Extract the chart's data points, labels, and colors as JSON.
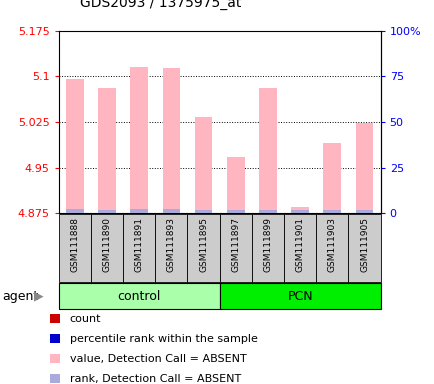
{
  "title": "GDS2093 / 1375975_at",
  "samples": [
    "GSM111888",
    "GSM111890",
    "GSM111891",
    "GSM111893",
    "GSM111895",
    "GSM111897",
    "GSM111899",
    "GSM111901",
    "GSM111903",
    "GSM111905"
  ],
  "groups": [
    "control",
    "control",
    "control",
    "control",
    "control",
    "PCN",
    "PCN",
    "PCN",
    "PCN",
    "PCN"
  ],
  "values": [
    5.095,
    5.08,
    5.115,
    5.113,
    5.033,
    4.968,
    5.08,
    4.885,
    4.99,
    5.023
  ],
  "ranks": [
    0.006,
    0.005,
    0.006,
    0.006,
    0.005,
    0.005,
    0.005,
    0.005,
    0.005,
    0.005
  ],
  "y_min": 4.875,
  "y_max": 5.175,
  "y_ticks": [
    4.875,
    4.95,
    5.025,
    5.1,
    5.175
  ],
  "y_tick_labels": [
    "4.875",
    "4.95",
    "5.025",
    "5.1",
    "5.175"
  ],
  "right_y_ticks": [
    0,
    25,
    50,
    75,
    100
  ],
  "right_y_tick_labels": [
    "0",
    "25",
    "50",
    "75",
    "100%"
  ],
  "bar_color_pink": "#FFB6C1",
  "rank_color": "#AAAADD",
  "control_bg": "#AAFFAA",
  "pcn_bg": "#00EE00",
  "legend_items": [
    {
      "color": "#CC0000",
      "label": "count"
    },
    {
      "color": "#0000CC",
      "label": "percentile rank within the sample"
    },
    {
      "color": "#FFB6C1",
      "label": "value, Detection Call = ABSENT"
    },
    {
      "color": "#AAAADD",
      "label": "rank, Detection Call = ABSENT"
    }
  ],
  "agent_label": "agent"
}
